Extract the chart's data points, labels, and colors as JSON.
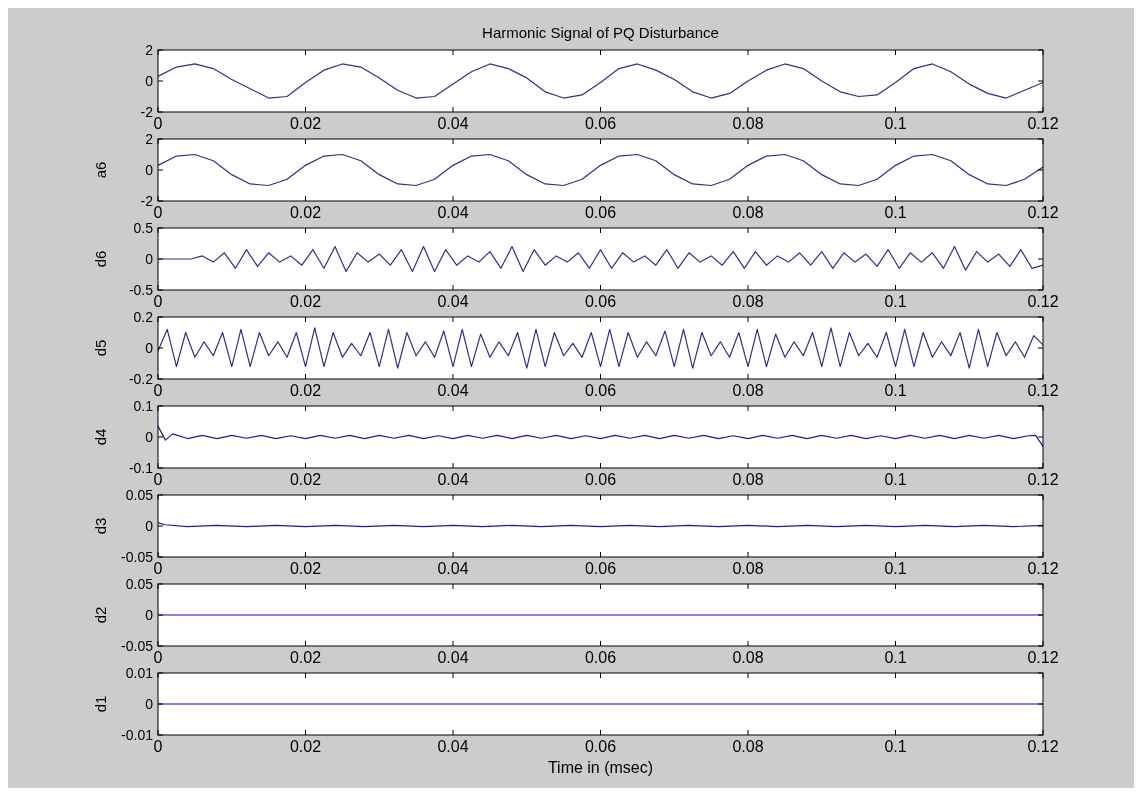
{
  "chart_data": [
    {
      "type": "line",
      "title": "Harmonic Signal of PQ Disturbance",
      "xlim": [
        0,
        0.12
      ],
      "xticks": [
        0,
        0.02,
        0.04,
        0.06,
        0.08,
        0.1,
        0.12
      ],
      "ylim": [
        -2,
        2
      ],
      "yticks": [
        -2,
        0,
        2
      ],
      "grid": false,
      "legend": false,
      "x": [
        0,
        0.0025,
        0.005,
        0.0075,
        0.01,
        0.0125,
        0.015,
        0.0175,
        0.02,
        0.0225,
        0.025,
        0.0275,
        0.03,
        0.0325,
        0.035,
        0.0375,
        0.04,
        0.0425,
        0.045,
        0.0475,
        0.05,
        0.0525,
        0.055,
        0.0575,
        0.06,
        0.0625,
        0.065,
        0.0675,
        0.07,
        0.0725,
        0.075,
        0.0775,
        0.08,
        0.0825,
        0.085,
        0.0875,
        0.09,
        0.0925,
        0.095,
        0.0975,
        0.1,
        0.1025,
        0.105,
        0.1075,
        0.11,
        0.1125,
        0.115,
        0.1175,
        0.12
      ],
      "series": [
        {
          "color": "#30308c",
          "values": [
            0.3,
            0.9,
            1.1,
            0.8,
            0.1,
            -0.5,
            -1.1,
            -1.0,
            -0.1,
            0.7,
            1.1,
            0.9,
            0.2,
            -0.6,
            -1.1,
            -1.0,
            -0.2,
            0.6,
            1.1,
            0.8,
            0.2,
            -0.7,
            -1.1,
            -0.9,
            -0.1,
            0.8,
            1.1,
            0.7,
            0.1,
            -0.7,
            -1.1,
            -0.8,
            0.0,
            0.7,
            1.1,
            0.8,
            0.0,
            -0.7,
            -1.0,
            -0.9,
            -0.1,
            0.8,
            1.1,
            0.6,
            -0.2,
            -0.8,
            -1.1,
            -0.6,
            -0.1
          ]
        }
      ]
    },
    {
      "type": "line",
      "ylabel": "a6",
      "xlim": [
        0,
        0.12
      ],
      "xticks": [
        0,
        0.02,
        0.04,
        0.06,
        0.08,
        0.1,
        0.12
      ],
      "ylim": [
        -2,
        2
      ],
      "yticks": [
        -2,
        0,
        2
      ],
      "grid": false,
      "legend": false,
      "x": [
        0,
        0.0025,
        0.005,
        0.0075,
        0.01,
        0.0125,
        0.015,
        0.0175,
        0.02,
        0.0225,
        0.025,
        0.0275,
        0.03,
        0.0325,
        0.035,
        0.0375,
        0.04,
        0.0425,
        0.045,
        0.0475,
        0.05,
        0.0525,
        0.055,
        0.0575,
        0.06,
        0.0625,
        0.065,
        0.0675,
        0.07,
        0.0725,
        0.075,
        0.0775,
        0.08,
        0.0825,
        0.085,
        0.0875,
        0.09,
        0.0925,
        0.095,
        0.0975,
        0.1,
        0.1025,
        0.105,
        0.1075,
        0.11,
        0.1125,
        0.115,
        0.1175,
        0.12
      ],
      "series": [
        {
          "color": "#30308c",
          "values": [
            0.3,
            0.9,
            1.0,
            0.6,
            -0.3,
            -0.9,
            -1.0,
            -0.6,
            0.3,
            0.9,
            1.0,
            0.6,
            -0.3,
            -0.9,
            -1.0,
            -0.6,
            0.3,
            0.9,
            1.0,
            0.6,
            -0.3,
            -0.9,
            -1.0,
            -0.6,
            0.3,
            0.9,
            1.0,
            0.6,
            -0.3,
            -0.9,
            -1.0,
            -0.6,
            0.3,
            0.9,
            1.0,
            0.6,
            -0.3,
            -0.9,
            -1.0,
            -0.6,
            0.3,
            0.9,
            1.0,
            0.6,
            -0.3,
            -0.9,
            -1.0,
            -0.6,
            0.2
          ]
        }
      ]
    },
    {
      "type": "line",
      "ylabel": "d6",
      "xlim": [
        0,
        0.12
      ],
      "xticks": [
        0,
        0.02,
        0.04,
        0.06,
        0.08,
        0.1,
        0.12
      ],
      "ylim": [
        -0.5,
        0.5
      ],
      "yticks": [
        -0.5,
        0,
        0.5
      ],
      "grid": false,
      "legend": false,
      "x": [
        0,
        0.0015,
        0.003,
        0.0045,
        0.006,
        0.0075,
        0.009,
        0.0105,
        0.012,
        0.0135,
        0.015,
        0.0165,
        0.018,
        0.0195,
        0.021,
        0.0225,
        0.024,
        0.0255,
        0.027,
        0.0285,
        0.03,
        0.0315,
        0.033,
        0.0345,
        0.036,
        0.0375,
        0.039,
        0.0405,
        0.042,
        0.0435,
        0.045,
        0.0465,
        0.048,
        0.0495,
        0.051,
        0.0525,
        0.054,
        0.0555,
        0.057,
        0.0585,
        0.06,
        0.0615,
        0.063,
        0.0645,
        0.066,
        0.0675,
        0.069,
        0.0705,
        0.072,
        0.0735,
        0.075,
        0.0765,
        0.078,
        0.0795,
        0.081,
        0.0825,
        0.084,
        0.0855,
        0.087,
        0.0885,
        0.09,
        0.0915,
        0.093,
        0.0945,
        0.096,
        0.0975,
        0.099,
        0.1005,
        0.102,
        0.1035,
        0.105,
        0.1065,
        0.108,
        0.1095,
        0.111,
        0.1125,
        0.114,
        0.1155,
        0.117,
        0.1185,
        0.12
      ],
      "series": [
        {
          "color": "#30308c",
          "values": [
            0,
            0,
            0,
            0,
            0.05,
            -0.05,
            0.1,
            -0.15,
            0.15,
            -0.12,
            0.1,
            -0.05,
            0.05,
            -0.1,
            0.15,
            -0.15,
            0.2,
            -0.2,
            0.1,
            -0.05,
            0.08,
            -0.1,
            0.15,
            -0.2,
            0.2,
            -0.2,
            0.15,
            -0.1,
            0.05,
            -0.05,
            0.12,
            -0.15,
            0.2,
            -0.2,
            0.15,
            -0.1,
            0.05,
            -0.05,
            0.1,
            -0.15,
            0.15,
            -0.15,
            0.1,
            -0.05,
            0.05,
            -0.1,
            0.15,
            -0.15,
            0.1,
            -0.05,
            0.05,
            -0.1,
            0.12,
            -0.15,
            0.12,
            -0.1,
            0.05,
            -0.05,
            0.1,
            -0.1,
            0.12,
            -0.15,
            0.1,
            -0.05,
            0.08,
            -0.12,
            0.15,
            -0.15,
            0.1,
            -0.05,
            0.1,
            -0.15,
            0.2,
            -0.18,
            0.12,
            -0.05,
            0.08,
            -0.12,
            0.15,
            -0.15,
            -0.1
          ]
        }
      ]
    },
    {
      "type": "line",
      "ylabel": "d5",
      "xlim": [
        0,
        0.12
      ],
      "xticks": [
        0,
        0.02,
        0.04,
        0.06,
        0.08,
        0.1,
        0.12
      ],
      "ylim": [
        -0.2,
        0.2
      ],
      "yticks": [
        -0.2,
        0,
        0.2
      ],
      "grid": false,
      "legend": false,
      "x": [
        0,
        0.00125,
        0.0025,
        0.00375,
        0.005,
        0.00625,
        0.0075,
        0.00875,
        0.01,
        0.01125,
        0.0125,
        0.01375,
        0.015,
        0.01625,
        0.0175,
        0.01875,
        0.02,
        0.02125,
        0.0225,
        0.02375,
        0.025,
        0.02625,
        0.0275,
        0.02875,
        0.03,
        0.03125,
        0.0325,
        0.03375,
        0.035,
        0.03625,
        0.0375,
        0.03875,
        0.04,
        0.04125,
        0.0425,
        0.04375,
        0.045,
        0.04625,
        0.0475,
        0.04875,
        0.05,
        0.05125,
        0.0525,
        0.05375,
        0.055,
        0.05625,
        0.0575,
        0.05875,
        0.06,
        0.06125,
        0.0625,
        0.06375,
        0.065,
        0.06625,
        0.0675,
        0.06875,
        0.07,
        0.07125,
        0.0725,
        0.07375,
        0.075,
        0.07625,
        0.0775,
        0.07875,
        0.08,
        0.08125,
        0.0825,
        0.08375,
        0.085,
        0.08625,
        0.0875,
        0.08875,
        0.09,
        0.09125,
        0.0925,
        0.09375,
        0.095,
        0.09625,
        0.0975,
        0.09875,
        0.1,
        0.10125,
        0.1025,
        0.10375,
        0.105,
        0.10625,
        0.1075,
        0.10875,
        0.11,
        0.11125,
        0.1125,
        0.11375,
        0.115,
        0.11625,
        0.1175,
        0.11875,
        0.12
      ],
      "series": [
        {
          "color": "#30308c",
          "values": [
            -0.02,
            0.12,
            -0.12,
            0.1,
            -0.06,
            0.04,
            -0.05,
            0.1,
            -0.12,
            0.12,
            -0.12,
            0.1,
            -0.05,
            0.04,
            -0.06,
            0.1,
            -0.12,
            0.13,
            -0.12,
            0.1,
            -0.06,
            0.03,
            -0.05,
            0.1,
            -0.12,
            0.12,
            -0.13,
            0.1,
            -0.05,
            0.04,
            -0.06,
            0.11,
            -0.12,
            0.12,
            -0.12,
            0.09,
            -0.06,
            0.04,
            -0.05,
            0.1,
            -0.13,
            0.12,
            -0.12,
            0.1,
            -0.05,
            0.03,
            -0.06,
            0.1,
            -0.12,
            0.12,
            -0.12,
            0.1,
            -0.06,
            0.04,
            -0.05,
            0.11,
            -0.12,
            0.12,
            -0.13,
            0.1,
            -0.05,
            0.04,
            -0.06,
            0.1,
            -0.12,
            0.12,
            -0.12,
            0.09,
            -0.06,
            0.04,
            -0.05,
            0.1,
            -0.12,
            0.13,
            -0.12,
            0.1,
            -0.05,
            0.03,
            -0.06,
            0.1,
            -0.12,
            0.12,
            -0.12,
            0.1,
            -0.06,
            0.04,
            -0.05,
            0.1,
            -0.13,
            0.12,
            -0.12,
            0.1,
            -0.05,
            0.04,
            -0.06,
            0.08,
            0.02
          ]
        }
      ]
    },
    {
      "type": "line",
      "ylabel": "d4",
      "xlim": [
        0,
        0.12
      ],
      "xticks": [
        0,
        0.02,
        0.04,
        0.06,
        0.08,
        0.1,
        0.12
      ],
      "ylim": [
        -0.1,
        0.1
      ],
      "yticks": [
        -0.1,
        0,
        0.1
      ],
      "grid": false,
      "legend": false,
      "x": [
        0,
        0.001,
        0.002,
        0.004,
        0.006,
        0.008,
        0.01,
        0.012,
        0.014,
        0.016,
        0.018,
        0.02,
        0.022,
        0.024,
        0.026,
        0.028,
        0.03,
        0.032,
        0.034,
        0.036,
        0.038,
        0.04,
        0.042,
        0.044,
        0.046,
        0.048,
        0.05,
        0.052,
        0.054,
        0.056,
        0.058,
        0.06,
        0.062,
        0.064,
        0.066,
        0.068,
        0.07,
        0.072,
        0.074,
        0.076,
        0.078,
        0.08,
        0.082,
        0.084,
        0.086,
        0.088,
        0.09,
        0.092,
        0.094,
        0.096,
        0.098,
        0.1,
        0.102,
        0.104,
        0.106,
        0.108,
        0.11,
        0.112,
        0.114,
        0.116,
        0.118,
        0.119,
        0.12
      ],
      "series": [
        {
          "color": "#1c1ca0",
          "values": [
            0.035,
            -0.01,
            0.01,
            -0.005,
            0.005,
            -0.005,
            0.005,
            -0.004,
            0.005,
            -0.005,
            0.004,
            -0.005,
            0.005,
            -0.004,
            0.005,
            -0.005,
            0.005,
            -0.004,
            0.005,
            -0.005,
            0.004,
            -0.005,
            0.005,
            -0.004,
            0.005,
            -0.005,
            0.005,
            -0.004,
            0.005,
            -0.005,
            0.004,
            -0.005,
            0.005,
            -0.004,
            0.005,
            -0.005,
            0.005,
            -0.004,
            0.005,
            -0.005,
            0.004,
            -0.005,
            0.005,
            -0.004,
            0.005,
            -0.005,
            0.005,
            -0.004,
            0.005,
            -0.005,
            0.004,
            -0.005,
            0.005,
            -0.004,
            0.005,
            -0.005,
            0.005,
            -0.004,
            0.005,
            -0.005,
            0.004,
            0.005,
            -0.03
          ]
        }
      ]
    },
    {
      "type": "line",
      "ylabel": "d3",
      "xlim": [
        0,
        0.12
      ],
      "xticks": [
        0,
        0.02,
        0.04,
        0.06,
        0.08,
        0.1,
        0.12
      ],
      "ylim": [
        -0.05,
        0.05
      ],
      "yticks": [
        -0.05,
        0,
        0.05
      ],
      "grid": false,
      "legend": false,
      "x": [
        0,
        0.001,
        0.004,
        0.008,
        0.012,
        0.016,
        0.02,
        0.024,
        0.028,
        0.032,
        0.036,
        0.04,
        0.044,
        0.048,
        0.052,
        0.056,
        0.06,
        0.064,
        0.068,
        0.072,
        0.076,
        0.08,
        0.084,
        0.088,
        0.092,
        0.096,
        0.1,
        0.104,
        0.108,
        0.112,
        0.116,
        0.12
      ],
      "series": [
        {
          "color": "#1c1ca0",
          "values": [
            0.005,
            0.002,
            -0.001,
            0.001,
            -0.001,
            0.001,
            -0.001,
            0.001,
            -0.001,
            0.001,
            -0.001,
            0.001,
            -0.001,
            0.001,
            -0.001,
            0.001,
            -0.001,
            0.001,
            -0.001,
            0.001,
            -0.001,
            0.001,
            -0.001,
            0.001,
            -0.001,
            0.001,
            -0.001,
            0.001,
            -0.001,
            0.001,
            -0.001,
            0.001
          ]
        }
      ]
    },
    {
      "type": "line",
      "ylabel": "d2",
      "xlim": [
        0,
        0.12
      ],
      "xticks": [
        0,
        0.02,
        0.04,
        0.06,
        0.08,
        0.1,
        0.12
      ],
      "ylim": [
        -0.05,
        0.05
      ],
      "yticks": [
        -0.05,
        0,
        0.05
      ],
      "grid": false,
      "legend": false,
      "x": [
        0,
        0.02,
        0.04,
        0.06,
        0.08,
        0.1,
        0.12
      ],
      "series": [
        {
          "color": "#0c0cc8",
          "values": [
            0,
            0,
            0,
            0,
            0,
            0,
            0
          ]
        }
      ]
    },
    {
      "type": "line",
      "ylabel": "d1",
      "xlabel": "Time in (msec)",
      "xlim": [
        0,
        0.12
      ],
      "xticks": [
        0,
        0.02,
        0.04,
        0.06,
        0.08,
        0.1,
        0.12
      ],
      "ylim": [
        -0.01,
        0.01
      ],
      "yticks": [
        -0.01,
        0,
        0.01
      ],
      "grid": false,
      "legend": false,
      "x": [
        0,
        0.02,
        0.04,
        0.06,
        0.08,
        0.1,
        0.12
      ],
      "series": [
        {
          "color": "#0000e6",
          "values": [
            0,
            0,
            0,
            0,
            0,
            0,
            0
          ]
        }
      ]
    }
  ]
}
